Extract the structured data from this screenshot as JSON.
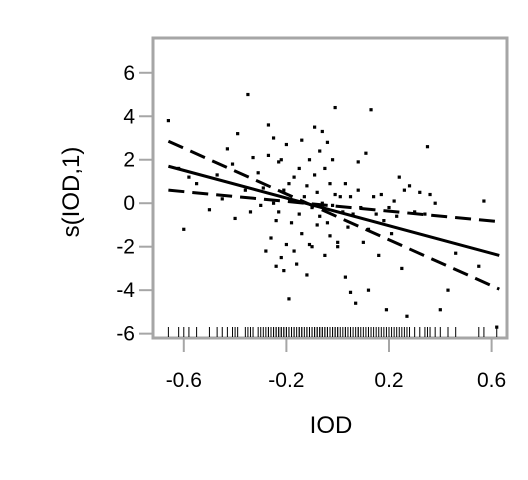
{
  "chart_data": {
    "type": "scatter",
    "title": "",
    "xlabel": "IOD",
    "ylabel": "s(IOD,1)",
    "xlim": [
      -0.72,
      0.66
    ],
    "ylim": [
      -6.2,
      7.6
    ],
    "x_ticks": [
      -0.6,
      -0.2,
      0.2,
      0.6
    ],
    "x_tick_labels": [
      "-0.6",
      "-0.2",
      "0.2",
      "0.6"
    ],
    "y_ticks": [
      -6,
      -4,
      -2,
      0,
      2,
      4,
      6
    ],
    "y_tick_labels": [
      "-6",
      "-4",
      "-2",
      "0",
      "2",
      "4",
      "6"
    ],
    "grid": false,
    "fit_line": {
      "style": "solid",
      "x": [
        -0.66,
        0.63
      ],
      "y": [
        1.7,
        -2.4
      ]
    },
    "ci_upper": {
      "style": "dashed",
      "x": [
        -0.66,
        0.63
      ],
      "y": [
        0.6,
        -0.85
      ]
    },
    "ci_lower": {
      "style": "dashed",
      "x": [
        -0.66,
        0.63
      ],
      "y": [
        2.85,
        -3.95
      ]
    },
    "points": [
      [
        -0.66,
        3.8
      ],
      [
        -0.62,
        1.6
      ],
      [
        -0.6,
        -1.2
      ],
      [
        -0.58,
        1.2
      ],
      [
        -0.55,
        0.9
      ],
      [
        -0.5,
        -0.3
      ],
      [
        -0.47,
        1.3
      ],
      [
        -0.45,
        0.2
      ],
      [
        -0.43,
        2.5
      ],
      [
        -0.41,
        1.8
      ],
      [
        -0.4,
        -0.7
      ],
      [
        -0.39,
        3.2
      ],
      [
        -0.36,
        0.6
      ],
      [
        -0.35,
        5.0
      ],
      [
        -0.34,
        -0.4
      ],
      [
        -0.33,
        2.1
      ],
      [
        -0.31,
        1.4
      ],
      [
        -0.3,
        -0.1
      ],
      [
        -0.29,
        0.7
      ],
      [
        -0.28,
        -2.2
      ],
      [
        -0.27,
        2.2
      ],
      [
        -0.27,
        3.6
      ],
      [
        -0.26,
        -1.6
      ],
      [
        -0.25,
        3.0
      ],
      [
        -0.25,
        0.0
      ],
      [
        -0.24,
        -0.8
      ],
      [
        -0.24,
        -2.9
      ],
      [
        -0.23,
        1.9
      ],
      [
        -0.23,
        -0.4
      ],
      [
        -0.22,
        2.0
      ],
      [
        -0.22,
        -2.5
      ],
      [
        -0.21,
        0.6
      ],
      [
        -0.21,
        -3.1
      ],
      [
        -0.2,
        -1.9
      ],
      [
        -0.2,
        2.7
      ],
      [
        -0.19,
        0.9
      ],
      [
        -0.19,
        -4.4
      ],
      [
        -0.18,
        -0.9
      ],
      [
        -0.18,
        0.1
      ],
      [
        -0.17,
        1.2
      ],
      [
        -0.17,
        -2.2
      ],
      [
        -0.16,
        -2.8
      ],
      [
        -0.15,
        -0.5
      ],
      [
        -0.15,
        1.6
      ],
      [
        -0.14,
        2.9
      ],
      [
        -0.14,
        -1.4
      ],
      [
        -0.13,
        0.3
      ],
      [
        -0.12,
        -3.3
      ],
      [
        -0.12,
        0.8
      ],
      [
        -0.11,
        -1.9
      ],
      [
        -0.11,
        2.0
      ],
      [
        -0.1,
        -0.2
      ],
      [
        -0.1,
        -2.0
      ],
      [
        -0.09,
        3.5
      ],
      [
        -0.09,
        1.3
      ],
      [
        -0.08,
        0.5
      ],
      [
        -0.08,
        -1.0
      ],
      [
        -0.07,
        2.4
      ],
      [
        -0.07,
        -0.6
      ],
      [
        -0.06,
        3.3
      ],
      [
        -0.06,
        0.0
      ],
      [
        -0.05,
        -2.4
      ],
      [
        -0.05,
        1.6
      ],
      [
        -0.04,
        2.8
      ],
      [
        -0.04,
        -0.9
      ],
      [
        -0.03,
        0.9
      ],
      [
        -0.03,
        -1.5
      ],
      [
        -0.02,
        2.0
      ],
      [
        -0.02,
        -0.1
      ],
      [
        -0.01,
        4.4
      ],
      [
        -0.01,
        0.4
      ],
      [
        0.0,
        -1.8
      ],
      [
        0.0,
        -2.0
      ],
      [
        0.01,
        0.3
      ],
      [
        0.02,
        -0.4
      ],
      [
        0.03,
        -3.4
      ],
      [
        0.03,
        0.9
      ],
      [
        0.04,
        -1.1
      ],
      [
        0.05,
        -4.1
      ],
      [
        0.05,
        0.3
      ],
      [
        0.06,
        -0.5
      ],
      [
        0.07,
        -4.6
      ],
      [
        0.08,
        1.9
      ],
      [
        0.08,
        0.6
      ],
      [
        0.09,
        -0.2
      ],
      [
        0.1,
        -1.8
      ],
      [
        0.11,
        2.3
      ],
      [
        0.12,
        -1.2
      ],
      [
        0.12,
        -4.0
      ],
      [
        0.13,
        4.3
      ],
      [
        0.14,
        0.3
      ],
      [
        0.15,
        -0.5
      ],
      [
        0.16,
        -2.4
      ],
      [
        0.17,
        0.4
      ],
      [
        0.18,
        -0.8
      ],
      [
        0.19,
        -4.9
      ],
      [
        0.2,
        -0.2
      ],
      [
        0.21,
        -1.4
      ],
      [
        0.22,
        0.1
      ],
      [
        0.23,
        -0.6
      ],
      [
        0.24,
        1.2
      ],
      [
        0.25,
        -3.0
      ],
      [
        0.26,
        0.6
      ],
      [
        0.27,
        -5.2
      ],
      [
        0.28,
        0.8
      ],
      [
        0.3,
        -0.4
      ],
      [
        0.32,
        0.5
      ],
      [
        0.34,
        -0.5
      ],
      [
        0.35,
        2.6
      ],
      [
        0.36,
        0.4
      ],
      [
        0.38,
        0.0
      ],
      [
        0.4,
        -4.9
      ],
      [
        0.43,
        -4.0
      ],
      [
        0.46,
        -2.3
      ],
      [
        0.55,
        -2.9
      ],
      [
        0.57,
        0.1
      ],
      [
        0.62,
        -5.7
      ]
    ]
  }
}
